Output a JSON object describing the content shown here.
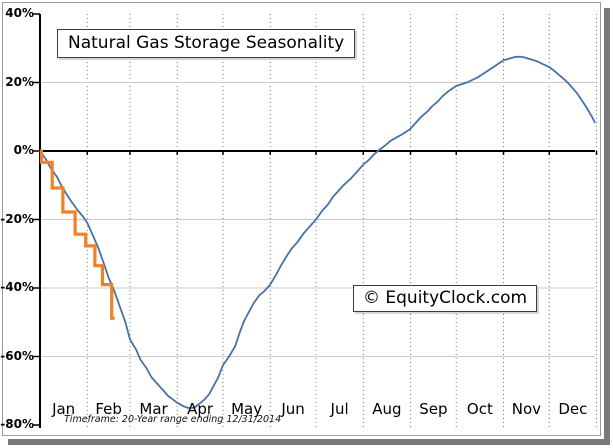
{
  "chart_data": {
    "type": "line",
    "title": "Natural Gas Storage Seasonality",
    "watermark": "© EquityClock.com",
    "footnote": "Timeframe: 20-Year range ending 12/31/2014",
    "x_axis": {
      "tick_labels": [
        "Jan",
        "Feb",
        "Mar",
        "Apr",
        "May",
        "Jun",
        "Jul",
        "Aug",
        "Sep",
        "Oct",
        "Nov",
        "Dec"
      ],
      "month_boundary_days": [
        32,
        60,
        91,
        121,
        152,
        182,
        213,
        244,
        274,
        305,
        335,
        366
      ],
      "range_days": [
        1,
        365
      ]
    },
    "y_axis": {
      "unit": "%",
      "range": [
        -80,
        40
      ],
      "tick_values": [
        40,
        20,
        0,
        -20,
        -40,
        -60,
        -80
      ],
      "tick_labels": [
        "40%",
        "20%",
        "0%",
        "-20%",
        "-40%",
        "-60%",
        "-80%"
      ],
      "gridline_values": [
        20,
        -20,
        -40,
        -60
      ],
      "zero_line_value": 0
    },
    "colors": {
      "gridline": "#c8c8c8",
      "dotted_gridline": "#777777",
      "axis": "#000000",
      "blue_line": "#4572a7",
      "orange_line": "#f28124"
    },
    "series": [
      {
        "id": "seasonal-average-line",
        "style": "line",
        "color": "#4572a7",
        "points": [
          [
            1,
            0
          ],
          [
            5,
            -2.5
          ],
          [
            8,
            -5
          ],
          [
            12,
            -7.5
          ],
          [
            15,
            -10
          ],
          [
            19,
            -13
          ],
          [
            22,
            -15
          ],
          [
            26,
            -17.5
          ],
          [
            29,
            -19
          ],
          [
            32,
            -21
          ],
          [
            36,
            -25
          ],
          [
            39,
            -28
          ],
          [
            43,
            -33
          ],
          [
            46,
            -37
          ],
          [
            49,
            -40
          ],
          [
            53,
            -45
          ],
          [
            57,
            -50
          ],
          [
            60,
            -55
          ],
          [
            64,
            -58
          ],
          [
            67,
            -61
          ],
          [
            71,
            -63.5
          ],
          [
            74,
            -66
          ],
          [
            78,
            -68
          ],
          [
            81,
            -69.5
          ],
          [
            85,
            -71.5
          ],
          [
            88,
            -72.5
          ],
          [
            91,
            -73.5
          ],
          [
            95,
            -74.5
          ],
          [
            98,
            -75
          ],
          [
            102,
            -75
          ],
          [
            105,
            -74
          ],
          [
            109,
            -72.5
          ],
          [
            112,
            -71
          ],
          [
            115,
            -68.5
          ],
          [
            118,
            -66
          ],
          [
            121,
            -62.5
          ],
          [
            125,
            -60
          ],
          [
            129,
            -57
          ],
          [
            132,
            -53
          ],
          [
            135,
            -49.5
          ],
          [
            138,
            -47
          ],
          [
            141,
            -44.5
          ],
          [
            145,
            -42
          ],
          [
            148,
            -41
          ],
          [
            152,
            -39
          ],
          [
            156,
            -36
          ],
          [
            159,
            -33.5
          ],
          [
            163,
            -30.5
          ],
          [
            166,
            -28.5
          ],
          [
            170,
            -26.5
          ],
          [
            174,
            -24
          ],
          [
            178,
            -22
          ],
          [
            182,
            -20
          ],
          [
            186,
            -17.5
          ],
          [
            190,
            -15.5
          ],
          [
            193,
            -13.5
          ],
          [
            196,
            -12
          ],
          [
            200,
            -10
          ],
          [
            205,
            -8
          ],
          [
            209,
            -6
          ],
          [
            213,
            -4
          ],
          [
            217,
            -2.5
          ],
          [
            220,
            -1
          ],
          [
            224,
            0.5
          ],
          [
            227,
            1.5
          ],
          [
            231,
            3
          ],
          [
            235,
            4
          ],
          [
            239,
            5
          ],
          [
            244,
            6.5
          ],
          [
            248,
            8.5
          ],
          [
            251,
            10
          ],
          [
            255,
            11.5
          ],
          [
            258,
            13
          ],
          [
            262,
            14.5
          ],
          [
            265,
            16
          ],
          [
            269,
            17.5
          ],
          [
            274,
            19
          ],
          [
            281,
            20
          ],
          [
            288,
            21.5
          ],
          [
            295,
            23.5
          ],
          [
            300,
            25
          ],
          [
            305,
            26.5
          ],
          [
            309,
            27
          ],
          [
            313,
            27.5
          ],
          [
            317,
            27.5
          ],
          [
            321,
            27
          ],
          [
            325,
            26.5
          ],
          [
            328,
            26
          ],
          [
            331,
            25.3
          ],
          [
            335,
            24.5
          ],
          [
            338,
            23.5
          ],
          [
            342,
            22
          ],
          [
            346,
            20.5
          ],
          [
            349,
            19
          ],
          [
            353,
            17
          ],
          [
            356,
            15
          ],
          [
            359,
            13
          ],
          [
            361,
            11.5
          ],
          [
            363,
            10
          ],
          [
            365,
            8.2
          ]
        ]
      },
      {
        "id": "current-year-step-line",
        "style": "step",
        "color": "#f28124",
        "points": [
          [
            1,
            0
          ],
          [
            2,
            -3.3
          ],
          [
            9,
            -10.8
          ],
          [
            16,
            -17.8
          ],
          [
            24,
            -24.3
          ],
          [
            31,
            -27.7
          ],
          [
            37,
            -33.5
          ],
          [
            42,
            -39
          ],
          [
            48,
            -48.8
          ],
          [
            50,
            -48.8
          ]
        ]
      }
    ]
  }
}
